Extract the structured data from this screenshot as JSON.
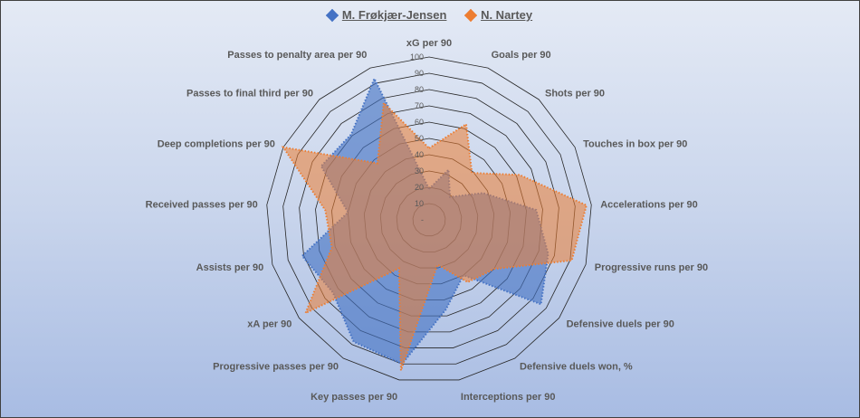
{
  "chart_data": {
    "type": "radar",
    "title": "",
    "categories": [
      "xG per 90",
      "Goals per 90",
      "Shots per 90",
      "Touches in box per 90",
      "Accelerations per 90",
      "Progressive runs per 90",
      "Defensive duels per 90",
      "Defensive duels won, %",
      "Interceptions per 90",
      "Key passes per 90",
      "Progressive passes per 90",
      "xA per 90",
      "Assists per 90",
      "Received passes per 90",
      "Deep completions per 90",
      "Passes to final third per 90",
      "Passes to penalty area per 90"
    ],
    "series": [
      {
        "name": "M. Frøkjær-Jensen",
        "color": "#4472c4",
        "values": [
          19,
          33,
          19,
          37,
          66,
          76,
          86,
          40,
          56,
          90,
          88,
          74,
          81,
          50,
          74,
          71,
          93
        ]
      },
      {
        "name": "N. Nartey",
        "color": "#ed7d31",
        "values": [
          44,
          63,
          39,
          62,
          97,
          91,
          50,
          45,
          28,
          94,
          35,
          95,
          62,
          64,
          100,
          47,
          77
        ]
      }
    ],
    "rlim": [
      0,
      100
    ],
    "ticks": [
      "-",
      "10",
      "20",
      "30",
      "40",
      "50",
      "60",
      "70",
      "80",
      "90",
      "100"
    ],
    "legend": "top"
  }
}
